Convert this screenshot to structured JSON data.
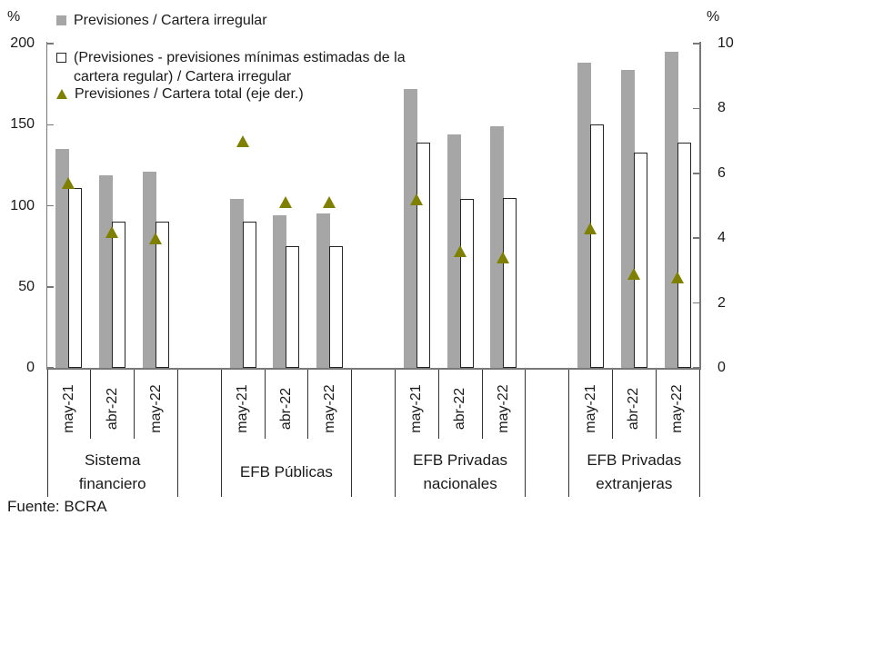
{
  "legend": {
    "item1": "Previsiones / Cartera irregular",
    "item2_line1": "(Previsiones - previsiones mínimas estimadas de la",
    "item2_line2": "cartera regular) / Cartera irregular",
    "item3": "Previsiones / Cartera total (eje der.)"
  },
  "source": "Fuente: BCRA",
  "colors": {
    "bar_gray": "#a6a6a6",
    "bar_white_border": "#262626",
    "triangle": "#7f7f00",
    "axis": "#787878",
    "text": "#1a1a1a"
  },
  "chart_data": {
    "type": "bar",
    "title": "",
    "grid": false,
    "legend_position": "top-left",
    "left_axis": {
      "unit": "%",
      "min": 0,
      "max": 200,
      "ticks": [
        {
          "label": "200",
          "value": 200
        },
        {
          "label": "150",
          "value": 150
        },
        {
          "label": "100",
          "value": 100
        },
        {
          "label": "50",
          "value": 50
        },
        {
          "label": "0",
          "value": 0
        }
      ]
    },
    "right_axis": {
      "unit": "%",
      "min": 0,
      "max": 10,
      "ticks": [
        {
          "label": "10",
          "value": 10
        },
        {
          "label": "8",
          "value": 8
        },
        {
          "label": "6",
          "value": 6
        },
        {
          "label": "4",
          "value": 4
        },
        {
          "label": "2",
          "value": 2
        },
        {
          "label": "0",
          "value": 0
        }
      ]
    },
    "categories": [
      "may-21",
      "abr-22",
      "may-22"
    ],
    "series": [
      {
        "key": "previsiones_cartera_irregular",
        "label": "Previsiones / Cartera irregular",
        "type": "bar",
        "style": "gray-filled",
        "axis": "left"
      },
      {
        "key": "previsiones_netas",
        "label": "(Previsiones - previsiones mínimas estimadas de la cartera regular) / Cartera irregular",
        "type": "bar",
        "style": "white-outlined",
        "axis": "left"
      },
      {
        "key": "previsiones_cartera_total",
        "label": "Previsiones / Cartera total (eje der.)",
        "type": "scatter-triangle",
        "style": "olive-triangle",
        "axis": "right"
      }
    ],
    "groups": [
      {
        "label": "Sistema financiero",
        "label_lines": [
          "Sistema",
          "financiero"
        ],
        "previsiones_cartera_irregular": [
          135,
          119,
          121
        ],
        "previsiones_netas": [
          111,
          90,
          90
        ],
        "previsiones_cartera_total": [
          5.7,
          4.2,
          4.0
        ]
      },
      {
        "label": "EFB Públicas",
        "label_lines": [
          "EFB Públicas"
        ],
        "previsiones_cartera_irregular": [
          104,
          94,
          95
        ],
        "previsiones_netas": [
          90,
          75,
          75
        ],
        "previsiones_cartera_total": [
          7.0,
          5.1,
          5.1
        ]
      },
      {
        "label": "EFB Privadas nacionales",
        "label_lines": [
          "EFB Privadas",
          "nacionales"
        ],
        "previsiones_cartera_irregular": [
          172,
          144,
          149
        ],
        "previsiones_netas": [
          139,
          104,
          105
        ],
        "previsiones_cartera_total": [
          5.2,
          3.6,
          3.4
        ]
      },
      {
        "label": "EFB Privadas extranjeras",
        "label_lines": [
          "EFB Privadas",
          "extranjeras"
        ],
        "previsiones_cartera_irregular": [
          188,
          184,
          195
        ],
        "previsiones_netas": [
          150,
          133,
          139
        ],
        "previsiones_cartera_total": [
          4.3,
          2.9,
          2.8
        ]
      }
    ]
  }
}
